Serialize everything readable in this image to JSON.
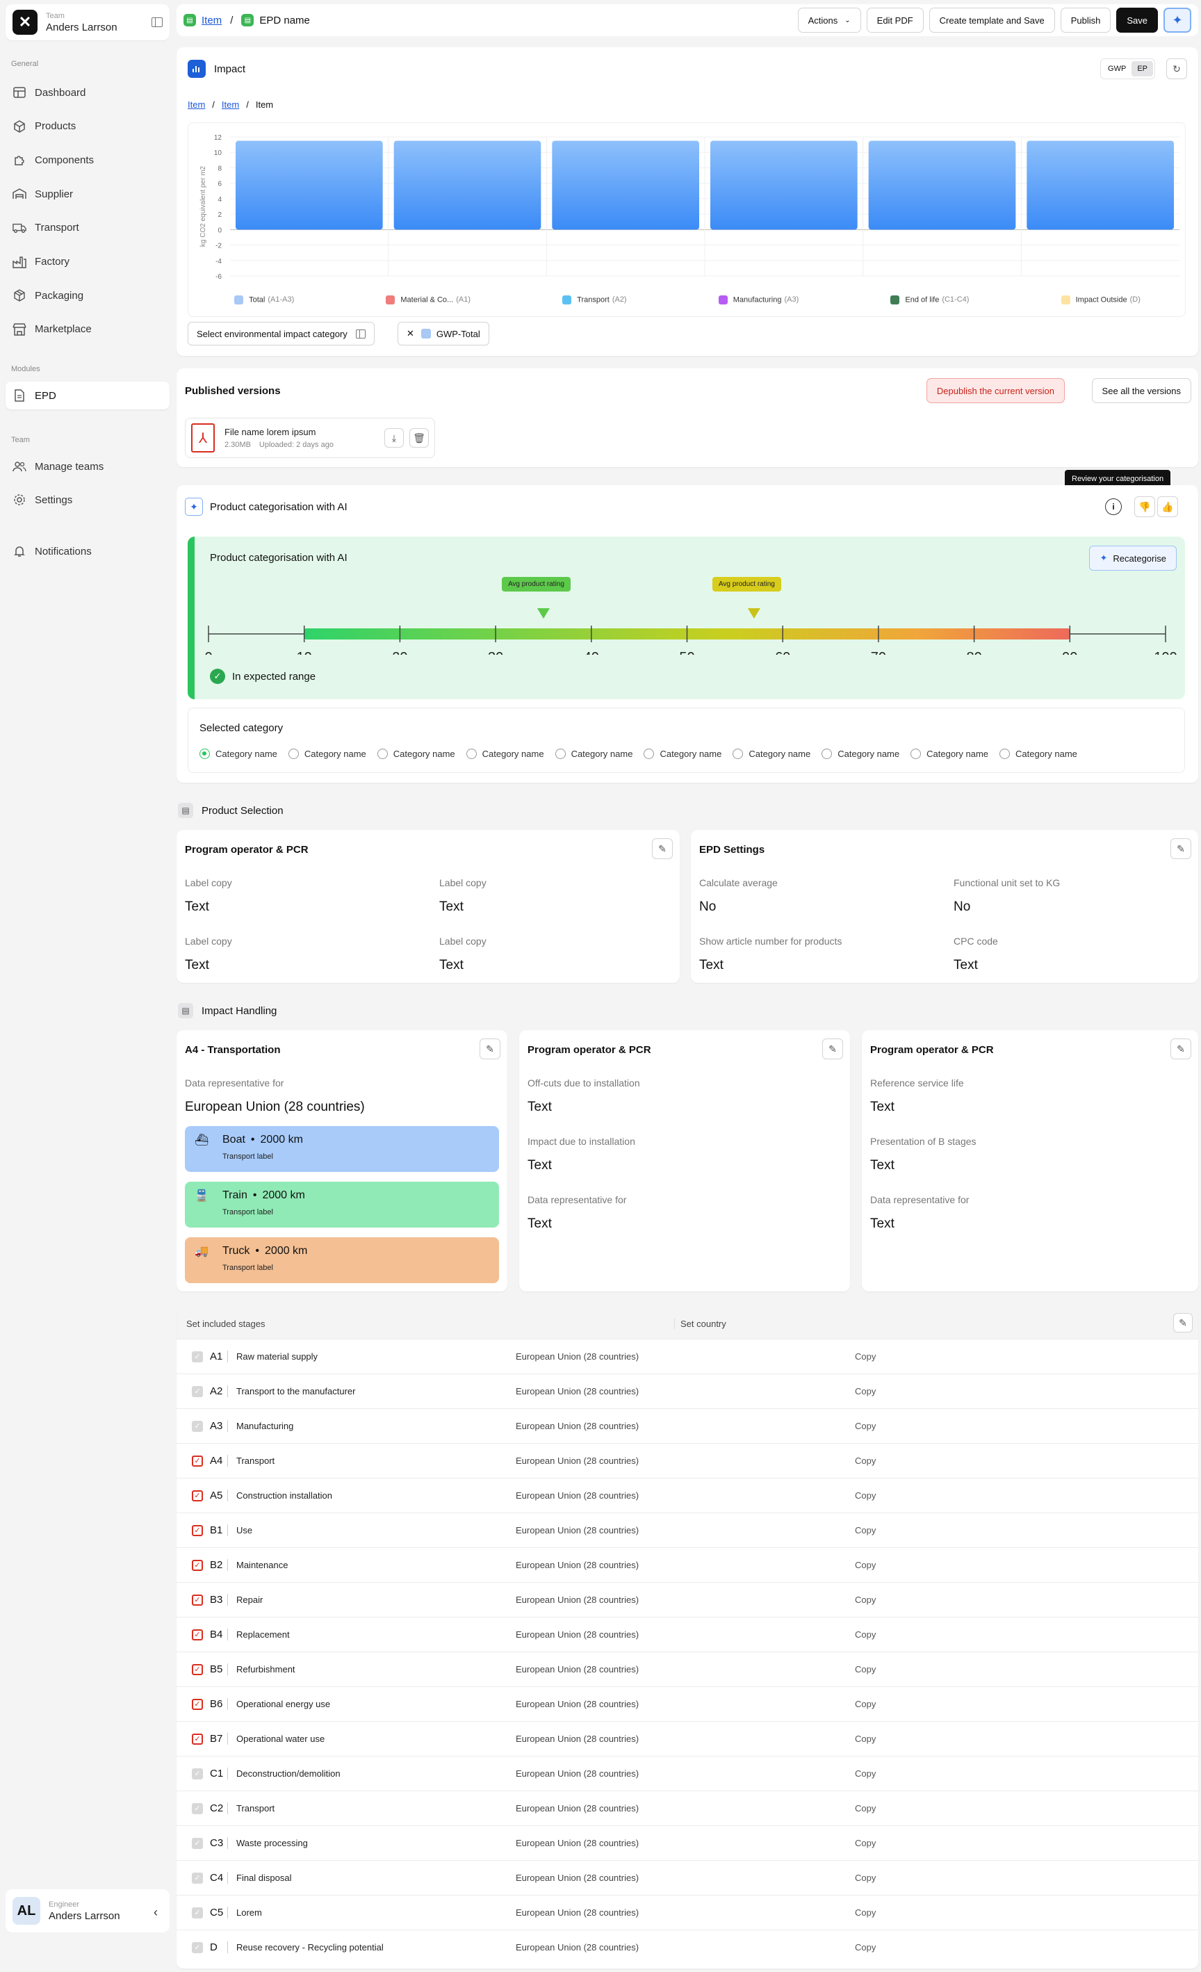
{
  "sidebar": {
    "team_label": "Team",
    "team_name": "Anders Larrson",
    "general_label": "General",
    "general_items": [
      {
        "label": "Dashboard",
        "icon": "dashboard-icon"
      },
      {
        "label": "Products",
        "icon": "box-icon"
      },
      {
        "label": "Components",
        "icon": "puzzle-icon"
      },
      {
        "label": "Supplier",
        "icon": "warehouse-icon"
      },
      {
        "label": "Transport",
        "icon": "truck-icon"
      },
      {
        "label": "Factory",
        "icon": "factory-icon"
      },
      {
        "label": "Packaging",
        "icon": "package-icon"
      },
      {
        "label": "Marketplace",
        "icon": "store-icon"
      }
    ],
    "modules_label": "Modules",
    "modules_items": [
      {
        "label": "EPD",
        "icon": "document-icon"
      }
    ],
    "team_section_label": "Team",
    "team_items": [
      {
        "label": "Manage teams",
        "icon": "users-icon"
      },
      {
        "label": "Settings",
        "icon": "gear-icon"
      }
    ],
    "notifications": "Notifications",
    "user_role": "Engineer",
    "user_name": "Anders Larrson",
    "user_initials": "AL"
  },
  "header": {
    "crumb_1": "Item",
    "crumb_2": "EPD name",
    "actions": "Actions",
    "edit_pdf": "Edit PDF",
    "create_template": "Create template and Save",
    "publish": "Publish",
    "save": "Save"
  },
  "impact": {
    "title": "Impact",
    "toggle": [
      "GWP",
      "EP"
    ],
    "crumbs": [
      "Item",
      "Item",
      "Item"
    ],
    "select_category": "Select environmental impact category",
    "chip": "GWP-Total"
  },
  "chart_data": {
    "type": "bar",
    "ylabel": "kg CO2 equivalent per m2",
    "ylim": [
      -6,
      12
    ],
    "yticks": [
      12,
      10,
      8,
      6,
      4,
      2,
      0,
      -2,
      -4,
      -6
    ],
    "categories": [
      "Total",
      "Material & Co...",
      "Transport",
      "Manufacturing",
      "End of life",
      "Impact Outside"
    ],
    "values": [
      11.5,
      11.5,
      11.5,
      11.5,
      11.5,
      11.5
    ],
    "bar_color": "#3b8bf7",
    "legend": [
      {
        "name": "Total",
        "code": "(A1-A3)",
        "color": "#a8c8f5"
      },
      {
        "name": "Material & Co...",
        "code": "(A1)",
        "color": "#f07c7c"
      },
      {
        "name": "Transport",
        "code": "(A2)",
        "color": "#5ac1f2"
      },
      {
        "name": "Manufacturing",
        "code": "(A3)",
        "color": "#b65cf2"
      },
      {
        "name": "End of life",
        "code": "(C1-C4)",
        "color": "#3f7d55"
      },
      {
        "name": "Impact Outside",
        "code": "(D)",
        "color": "#fde3a1"
      }
    ]
  },
  "published": {
    "title": "Published versions",
    "depublish": "Depublish the current version",
    "see_all": "See all the versions",
    "file_name": "File name lorem ipsum",
    "file_size": "2.30MB",
    "file_uploaded": "Uploaded: 2 days ago"
  },
  "categorisation": {
    "title": "Product categorisation with AI",
    "tooltip": "Review your categorisation",
    "panel_title": "Product categorisation with AI",
    "recategorise": "Recategorise",
    "bubble_1": "Avg product rating",
    "bubble_2": "Avg product rating",
    "bubble_1_value": 35,
    "bubble_2_value": 57,
    "range_start": 10,
    "range_end": 90,
    "ticks": [
      "0",
      "10",
      "20",
      "30",
      "40",
      "50",
      "60",
      "70",
      "80",
      "90",
      "100"
    ],
    "status": "In expected range",
    "selected_label": "Selected category",
    "categories": [
      "Category name",
      "Category name",
      "Category name",
      "Category name",
      "Category name",
      "Category name",
      "Category name",
      "Category name",
      "Category name",
      "Category name"
    ]
  },
  "product_selection": {
    "title": "Product Selection",
    "program_card": {
      "title": "Program operator & PCR",
      "fields": [
        {
          "label": "Label copy",
          "value": "Text"
        },
        {
          "label": "Label copy",
          "value": "Text"
        },
        {
          "label": "Label copy",
          "value": "Text"
        },
        {
          "label": "Label copy",
          "value": "Text"
        }
      ]
    },
    "epd_card": {
      "title": "EPD Settings",
      "fields": [
        {
          "label": "Calculate average",
          "value": "No"
        },
        {
          "label": "Functional unit set to KG",
          "value": "No"
        },
        {
          "label": "Show article number for products",
          "value": "Text"
        },
        {
          "label": "CPC code",
          "value": "Text"
        }
      ]
    }
  },
  "impact_handling": {
    "title": "Impact Handling",
    "transport_card": {
      "title": "A4 - Transportation",
      "label": "Data representative for",
      "value": "European Union (28 countries)",
      "modes": [
        {
          "name": "Boat",
          "distance": "2000 km",
          "label": "Transport label",
          "color": "#a8cbfa",
          "icon": "boat-icon"
        },
        {
          "name": "Train",
          "distance": "2000 km",
          "label": "Transport label",
          "color": "#90eab5",
          "icon": "train-icon"
        },
        {
          "name": "Truck",
          "distance": "2000 km",
          "label": "Transport label",
          "color": "#f3bf93",
          "icon": "truck-icon"
        }
      ]
    },
    "card_2": {
      "title": "Program operator & PCR",
      "fields": [
        {
          "label": "Off-cuts due to installation",
          "value": "Text"
        },
        {
          "label": "Impact due to installation",
          "value": "Text"
        },
        {
          "label": "Data representative for",
          "value": "Text"
        }
      ]
    },
    "card_3": {
      "title": "Program operator & PCR",
      "fields": [
        {
          "label": "Reference service life",
          "value": "Text"
        },
        {
          "label": "Presentation of B stages",
          "value": "Text"
        },
        {
          "label": "Data representative for",
          "value": "Text"
        }
      ]
    }
  },
  "stages": {
    "col_1": "Set included stages",
    "col_2": "Set country",
    "rows": [
      {
        "code": "A1",
        "name": "Raw material supply",
        "country": "European Union (28 countries)",
        "copy": "Copy",
        "checked": false
      },
      {
        "code": "A2",
        "name": "Transport to the manufacturer",
        "country": "European Union (28 countries)",
        "copy": "Copy",
        "checked": false
      },
      {
        "code": "A3",
        "name": "Manufacturing",
        "country": "European Union (28 countries)",
        "copy": "Copy",
        "checked": false
      },
      {
        "code": "A4",
        "name": "Transport",
        "country": "European Union (28 countries)",
        "copy": "Copy",
        "checked": true
      },
      {
        "code": "A5",
        "name": "Construction installation",
        "country": "European Union (28 countries)",
        "copy": "Copy",
        "checked": true
      },
      {
        "code": "B1",
        "name": "Use",
        "country": "European Union (28 countries)",
        "copy": "Copy",
        "checked": true
      },
      {
        "code": "B2",
        "name": "Maintenance",
        "country": "European Union (28 countries)",
        "copy": "Copy",
        "checked": true
      },
      {
        "code": "B3",
        "name": "Repair",
        "country": "European Union (28 countries)",
        "copy": "Copy",
        "checked": true
      },
      {
        "code": "B4",
        "name": "Replacement",
        "country": "European Union (28 countries)",
        "copy": "Copy",
        "checked": true
      },
      {
        "code": "B5",
        "name": "Refurbishment",
        "country": "European Union (28 countries)",
        "copy": "Copy",
        "checked": true
      },
      {
        "code": "B6",
        "name": "Operational energy use",
        "country": "European Union (28 countries)",
        "copy": "Copy",
        "checked": true
      },
      {
        "code": "B7",
        "name": "Operational water use",
        "country": "European Union (28 countries)",
        "copy": "Copy",
        "checked": true
      },
      {
        "code": "C1",
        "name": "Deconstruction/demolition",
        "country": "European Union (28 countries)",
        "copy": "Copy",
        "checked": false
      },
      {
        "code": "C2",
        "name": "Transport",
        "country": "European Union (28 countries)",
        "copy": "Copy",
        "checked": false
      },
      {
        "code": "C3",
        "name": "Waste processing",
        "country": "European Union (28 countries)",
        "copy": "Copy",
        "checked": false
      },
      {
        "code": "C4",
        "name": "Final disposal",
        "country": "European Union (28 countries)",
        "copy": "Copy",
        "checked": false
      },
      {
        "code": "C5",
        "name": "Lorem",
        "country": "European Union (28 countries)",
        "copy": "Copy",
        "checked": false
      },
      {
        "code": "D",
        "name": "Reuse recovery - Recycling potential",
        "country": "European Union (28 countries)",
        "copy": "Copy",
        "checked": false
      }
    ]
  }
}
